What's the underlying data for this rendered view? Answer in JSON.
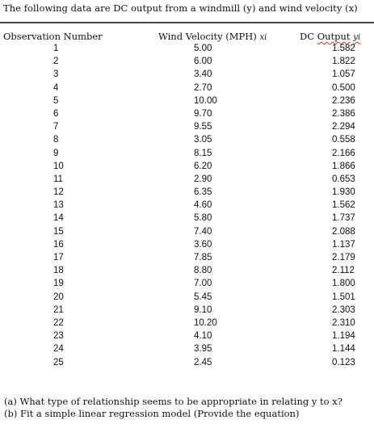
{
  "heading": "The following data are DC output from a windmill (y) and wind velocity (x)",
  "columns": {
    "obs": "Observation Number",
    "velocity": "Wind Velocity (MPH)",
    "velocity_var": "xi",
    "dc_label": "DC",
    "dc_output": "Output",
    "dc_var": "yi"
  },
  "rows": [
    {
      "n": "1",
      "x": "5.00",
      "y": "1.582"
    },
    {
      "n": "2",
      "x": "6.00",
      "y": "1.822"
    },
    {
      "n": "3",
      "x": "3.40",
      "y": "1.057"
    },
    {
      "n": "4",
      "x": "2.70",
      "y": "0.500"
    },
    {
      "n": "5",
      "x": "10.00",
      "y": "2.236"
    },
    {
      "n": "6",
      "x": "9.70",
      "y": "2.386"
    },
    {
      "n": "7",
      "x": "9.55",
      "y": "2.294"
    },
    {
      "n": "8",
      "x": "3.05",
      "y": "0.558"
    },
    {
      "n": "9",
      "x": "8.15",
      "y": "2.166"
    },
    {
      "n": "10",
      "x": "6.20",
      "y": "1.866"
    },
    {
      "n": "11",
      "x": "2.90",
      "y": "0.653"
    },
    {
      "n": "12",
      "x": "6.35",
      "y": "1.930"
    },
    {
      "n": "13",
      "x": "4.60",
      "y": "1.562"
    },
    {
      "n": "14",
      "x": "5.80",
      "y": "1.737"
    },
    {
      "n": "15",
      "x": "7.40",
      "y": "2.088"
    },
    {
      "n": "16",
      "x": "3.60",
      "y": "1.137"
    },
    {
      "n": "17",
      "x": "7.85",
      "y": "2.179"
    },
    {
      "n": "18",
      "x": "8.80",
      "y": "2.112"
    },
    {
      "n": "19",
      "x": "7.00",
      "y": "1.800"
    },
    {
      "n": "20",
      "x": "5.45",
      "y": "1.501"
    },
    {
      "n": "21",
      "x": "9.10",
      "y": "2.303"
    },
    {
      "n": "22",
      "x": "10.20",
      "y": "2.310"
    },
    {
      "n": "23",
      "x": "4.10",
      "y": "1.194"
    },
    {
      "n": "24",
      "x": "3.95",
      "y": "1.144"
    },
    {
      "n": "25",
      "x": "2.45",
      "y": "0.123"
    }
  ],
  "questions": {
    "a": "(a) What type of relationship seems to be appropriate in relating y to x?",
    "b": "(b) Fit a simple linear regression model (Provide the equation)"
  }
}
